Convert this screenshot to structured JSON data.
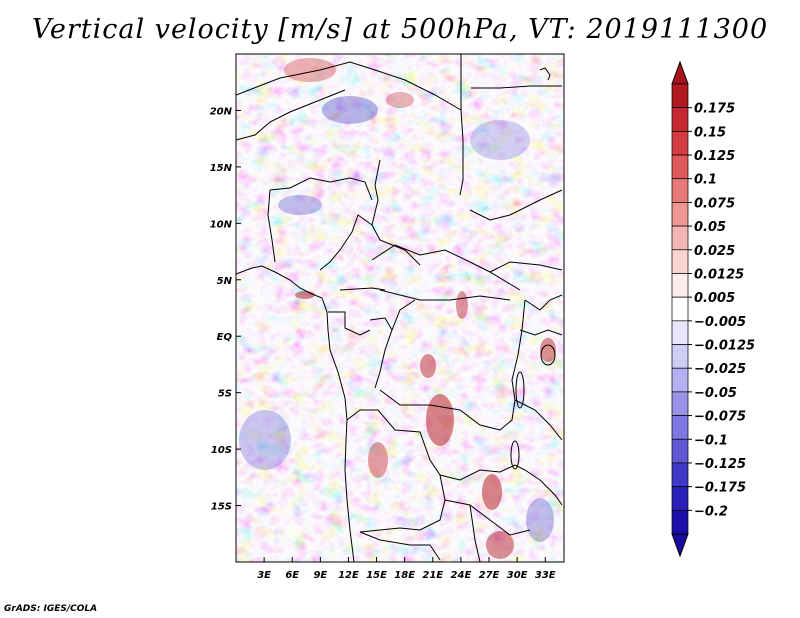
{
  "title": "Vertical velocity [m/s] at 500hPa, VT: 2019111300",
  "credit": "GrADS: IGES/COLA",
  "map": {
    "lon_range": [
      0,
      35
    ],
    "lat_range": [
      -20,
      25
    ],
    "x_ticks": [
      "3E",
      "6E",
      "9E",
      "12E",
      "15E",
      "18E",
      "21E",
      "24E",
      "27E",
      "30E",
      "33E"
    ],
    "x_tick_values": [
      3,
      6,
      9,
      12,
      15,
      18,
      21,
      24,
      27,
      30,
      33
    ],
    "y_ticks": [
      "20N",
      "15N",
      "10N",
      "5N",
      "EQ",
      "5S",
      "10S",
      "15S"
    ],
    "y_tick_values": [
      20,
      15,
      10,
      5,
      0,
      -5,
      -10,
      -15
    ],
    "field_colors": {
      "negative_strong": "#3c35c8",
      "negative_light": "#aaa6ee",
      "neutral": "#ffffff",
      "positive_light": "#f4aaa6",
      "positive_strong": "#c0262a"
    }
  },
  "colorbar": {
    "labels": [
      "0.175",
      "0.15",
      "0.125",
      "0.1",
      "0.075",
      "0.05",
      "0.025",
      "0.0125",
      "0.005",
      "−0.005",
      "−0.0125",
      "−0.025",
      "−0.05",
      "−0.075",
      "−0.1",
      "−0.125",
      "−0.175",
      "−0.2"
    ],
    "colors": [
      "#b01a22",
      "#c52a30",
      "#d33c40",
      "#df5a5c",
      "#e87a7a",
      "#ee9896",
      "#f3b6b3",
      "#f8d3d1",
      "#fceceb",
      "#ffffff",
      "#e7e6fb",
      "#cfcdf6",
      "#b5b1f0",
      "#9a94e8",
      "#7e77df",
      "#6058d4",
      "#4038c6",
      "#2a1fb5",
      "#1c0fa6"
    ],
    "top_arrow_color": "#a8141c",
    "bottom_arrow_color": "#1a0aa0"
  }
}
